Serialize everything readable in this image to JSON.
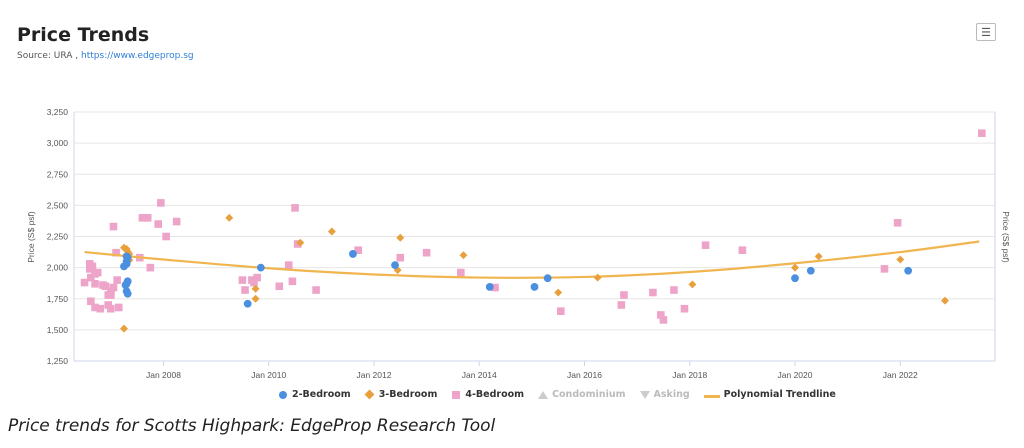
{
  "header": {
    "title": "Price Trends",
    "source_prefix": "Source: URA ,",
    "source_link": "https://www.edgeprop.sg"
  },
  "menu_icon": "hamburger-menu-icon",
  "caption": "Price trends for Scotts Highpark: EdgeProp Research Tool",
  "legend": [
    {
      "label": "2-Bedroom",
      "symbol": "circle",
      "color": "#4a8fe0",
      "visible": true
    },
    {
      "label": "3-Bedroom",
      "symbol": "diamond",
      "color": "#e8a03c",
      "visible": true
    },
    {
      "label": "4-Bedroom",
      "symbol": "square",
      "color": "#eea4c9",
      "visible": true
    },
    {
      "label": "Condominium",
      "symbol": "triangle-up",
      "color": "#cccccc",
      "visible": false
    },
    {
      "label": "Asking",
      "symbol": "triangle-down",
      "color": "#cccccc",
      "visible": false
    },
    {
      "label": "Polynomial Trendline",
      "symbol": "line",
      "color": "#f0b54f",
      "visible": true
    }
  ],
  "chart_data": {
    "type": "scatter",
    "title": "Price Trends",
    "ylabel": "Price (S$ psf)",
    "y2label": "Price (S$ psf)",
    "ylim": [
      1250,
      3250
    ],
    "yticks": [
      1250,
      1500,
      1750,
      2000,
      2250,
      2500,
      2750,
      3000,
      3250
    ],
    "ytick_labels": [
      "1,250",
      "1,500",
      "1,750",
      "2,000",
      "2,250",
      "2,500",
      "2,750",
      "3,000",
      "3,250"
    ],
    "xlim": [
      2006.3,
      2023.8
    ],
    "xticks": [
      2008,
      2010,
      2012,
      2014,
      2016,
      2018,
      2020,
      2022
    ],
    "xtick_labels": [
      "Jan 2008",
      "Jan 2010",
      "Jan 2012",
      "Jan 2014",
      "Jan 2016",
      "Jan 2018",
      "Jan 2020",
      "Jan 2022"
    ],
    "grid": "horizontal",
    "series": [
      {
        "name": "2-Bedroom",
        "marker": "circle",
        "color": "#4a8fe0",
        "points": [
          [
            2007.25,
            2010
          ],
          [
            2007.3,
            2030
          ],
          [
            2007.3,
            2050
          ],
          [
            2007.32,
            2080
          ],
          [
            2007.3,
            2090
          ],
          [
            2007.32,
            1890
          ],
          [
            2007.3,
            1870
          ],
          [
            2007.3,
            1810
          ],
          [
            2007.32,
            1790
          ],
          [
            2007.28,
            1860
          ],
          [
            2009.6,
            1710
          ],
          [
            2009.85,
            2000
          ],
          [
            2011.6,
            2110
          ],
          [
            2012.4,
            2020
          ],
          [
            2014.2,
            1845
          ],
          [
            2015.05,
            1845
          ],
          [
            2015.3,
            1915
          ],
          [
            2020.0,
            1915
          ],
          [
            2020.3,
            1975
          ],
          [
            2022.15,
            1975
          ]
        ]
      },
      {
        "name": "3-Bedroom",
        "marker": "diamond",
        "color": "#e8a03c",
        "points": [
          [
            2007.25,
            2160
          ],
          [
            2007.3,
            2150
          ],
          [
            2007.32,
            2130
          ],
          [
            2007.35,
            2110
          ],
          [
            2007.3,
            2090
          ],
          [
            2007.35,
            2060
          ],
          [
            2007.3,
            2040
          ],
          [
            2007.28,
            1860
          ],
          [
            2007.25,
            1510
          ],
          [
            2009.25,
            2400
          ],
          [
            2009.75,
            1830
          ],
          [
            2009.75,
            1750
          ],
          [
            2010.6,
            2200
          ],
          [
            2011.2,
            2290
          ],
          [
            2012.5,
            2240
          ],
          [
            2012.45,
            1980
          ],
          [
            2013.7,
            2100
          ],
          [
            2015.5,
            1800
          ],
          [
            2016.25,
            1920
          ],
          [
            2018.05,
            1865
          ],
          [
            2020.0,
            2000
          ],
          [
            2020.45,
            2090
          ],
          [
            2022.0,
            2065
          ],
          [
            2022.85,
            1735
          ]
        ]
      },
      {
        "name": "4-Bedroom",
        "marker": "square",
        "color": "#eea4c9",
        "points": [
          [
            2006.5,
            1880
          ],
          [
            2006.6,
            2030
          ],
          [
            2006.6,
            1990
          ],
          [
            2006.65,
            2010
          ],
          [
            2006.7,
            1950
          ],
          [
            2006.62,
            1920
          ],
          [
            2006.7,
            1870
          ],
          [
            2006.62,
            1730
          ],
          [
            2006.7,
            1680
          ],
          [
            2006.8,
            1670
          ],
          [
            2006.85,
            1860
          ],
          [
            2006.9,
            1850
          ],
          [
            2006.95,
            1700
          ],
          [
            2007.0,
            1670
          ],
          [
            2007.0,
            1780
          ],
          [
            2007.05,
            1840
          ],
          [
            2007.0,
            1810
          ],
          [
            2006.95,
            1780
          ],
          [
            2006.75,
            1960
          ],
          [
            2007.1,
            2120
          ],
          [
            2007.05,
            2330
          ],
          [
            2007.15,
            1680
          ],
          [
            2007.12,
            1900
          ],
          [
            2007.6,
            2400
          ],
          [
            2007.7,
            2400
          ],
          [
            2007.75,
            2000
          ],
          [
            2007.9,
            2350
          ],
          [
            2007.95,
            2520
          ],
          [
            2008.05,
            2250
          ],
          [
            2008.25,
            2370
          ],
          [
            2007.55,
            2080
          ],
          [
            2009.5,
            1900
          ],
          [
            2009.55,
            1820
          ],
          [
            2009.68,
            1900
          ],
          [
            2009.72,
            1880
          ],
          [
            2009.78,
            1920
          ],
          [
            2010.2,
            1850
          ],
          [
            2010.38,
            2020
          ],
          [
            2010.45,
            1890
          ],
          [
            2010.5,
            2480
          ],
          [
            2010.55,
            2190
          ],
          [
            2010.9,
            1820
          ],
          [
            2011.7,
            2140
          ],
          [
            2012.5,
            2080
          ],
          [
            2013.0,
            2120
          ],
          [
            2013.65,
            1960
          ],
          [
            2014.3,
            1840
          ],
          [
            2015.55,
            1650
          ],
          [
            2016.7,
            1700
          ],
          [
            2016.75,
            1780
          ],
          [
            2017.3,
            1800
          ],
          [
            2017.45,
            1620
          ],
          [
            2017.5,
            1580
          ],
          [
            2017.7,
            1820
          ],
          [
            2017.9,
            1670
          ],
          [
            2018.3,
            2180
          ],
          [
            2019.0,
            2140
          ],
          [
            2021.7,
            1990
          ],
          [
            2021.95,
            2360
          ],
          [
            2023.55,
            3080
          ]
        ]
      },
      {
        "name": "Polynomial Trendline",
        "type": "line",
        "color": "#f0b54f",
        "points": [
          [
            2006.5,
            2125
          ],
          [
            2008.0,
            2065
          ],
          [
            2010.0,
            1995
          ],
          [
            2012.0,
            1945
          ],
          [
            2014.0,
            1920
          ],
          [
            2016.0,
            1925
          ],
          [
            2018.0,
            1965
          ],
          [
            2020.0,
            2035
          ],
          [
            2022.0,
            2125
          ],
          [
            2023.5,
            2210
          ]
        ]
      }
    ]
  }
}
